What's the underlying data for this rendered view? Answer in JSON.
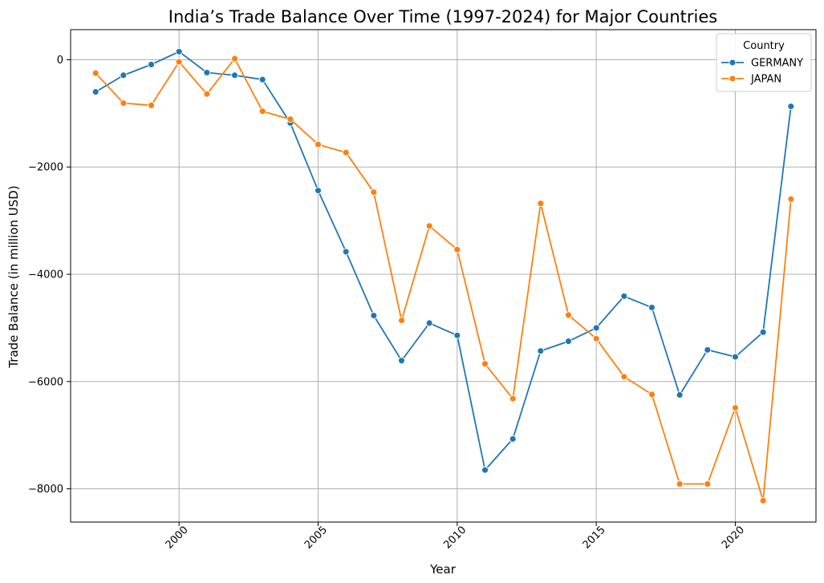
{
  "chart_data": {
    "type": "line",
    "title": "India’s Trade Balance Over Time (1997-2024) for Major Countries",
    "xlabel": "Year",
    "ylabel": "Trade Balance (in million USD)",
    "xlim": [
      1996.1,
      2022.9
    ],
    "ylim": [
      -8620,
      560
    ],
    "x_ticks": [
      2000,
      2005,
      2010,
      2015,
      2020
    ],
    "y_ticks": [
      0,
      -2000,
      -4000,
      -6000,
      -8000
    ],
    "y_tick_labels": [
      "0",
      "−2000",
      "−4000",
      "−6000",
      "−8000"
    ],
    "grid": true,
    "legend": {
      "title": "Country",
      "position": "top-right"
    },
    "x": [
      1997,
      1998,
      1999,
      2000,
      2001,
      2002,
      2003,
      2004,
      2005,
      2006,
      2007,
      2008,
      2009,
      2010,
      2011,
      2012,
      2013,
      2014,
      2015,
      2016,
      2017,
      2018,
      2019,
      2020,
      2021,
      2022
    ],
    "series": [
      {
        "name": "GERMANY",
        "color": "#1f77b4",
        "values": [
          -600,
          -290,
          -90,
          150,
          -240,
          -290,
          -370,
          -1180,
          -2440,
          -3580,
          -4770,
          -5610,
          -4910,
          -5140,
          -7650,
          -7070,
          -5430,
          -5250,
          -5000,
          -4410,
          -4620,
          -6250,
          -5410,
          -5540,
          -5080,
          -870
        ]
      },
      {
        "name": "JAPAN",
        "color": "#ff7f0e",
        "values": [
          -250,
          -810,
          -850,
          -40,
          -640,
          20,
          -960,
          -1110,
          -1580,
          -1730,
          -2470,
          -4860,
          -3100,
          -3540,
          -5670,
          -6320,
          -2680,
          -4760,
          -5200,
          -5910,
          -6240,
          -7910,
          -7910,
          -6490,
          -8220,
          -2600
        ]
      }
    ]
  }
}
